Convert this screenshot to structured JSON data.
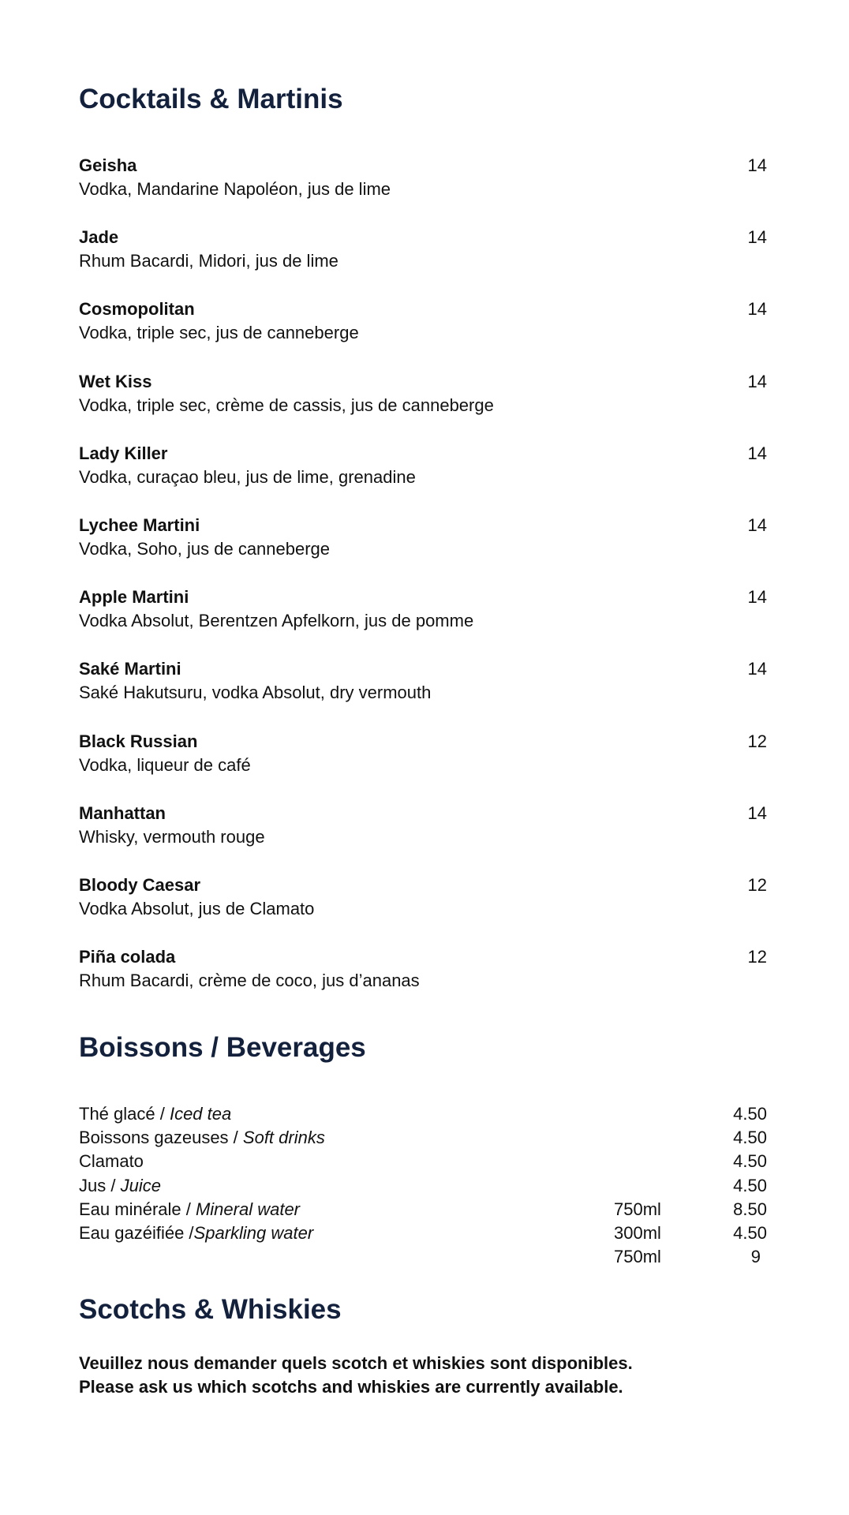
{
  "sections": {
    "cocktails": {
      "title": "Cocktails & Martinis",
      "items": [
        {
          "name": "Geisha",
          "description": "Vodka, Mandarine Napoléon, jus de lime",
          "price": "14"
        },
        {
          "name": "Jade",
          "description": "Rhum Bacardi, Midori, jus de lime",
          "price": "14"
        },
        {
          "name": "Cosmopolitan",
          "description": "Vodka, triple sec, jus de canneberge",
          "price": "14"
        },
        {
          "name": "Wet Kiss",
          "description": "Vodka, triple sec, crème de cassis, jus de canneberge",
          "price": "14"
        },
        {
          "name": "Lady Killer",
          "description": "Vodka, curaçao bleu, jus de lime, grenadine",
          "price": "14"
        },
        {
          "name": "Lychee Martini",
          "description": "Vodka, Soho, jus de canneberge",
          "price": "14"
        },
        {
          "name": "Apple Martini",
          "description": "Vodka Absolut, Berentzen Apfelkorn, jus de pomme",
          "price": "14"
        },
        {
          "name": "Saké Martini",
          "description": "Saké Hakutsuru, vodka Absolut, dry vermouth",
          "price": "14"
        },
        {
          "name": "Black Russian",
          "description": "Vodka, liqueur de café",
          "price": "12"
        },
        {
          "name": "Manhattan",
          "description": "Whisky, vermouth rouge",
          "price": "14"
        },
        {
          "name": "Bloody Caesar",
          "description": "Vodka Absolut, jus de Clamato",
          "price": "12"
        },
        {
          "name": "Piña colada",
          "description": "Rhum Bacardi, crème de coco, jus d’ananas",
          "price": "12"
        }
      ]
    },
    "beverages": {
      "title": "Boissons / Beverages",
      "items": [
        {
          "fr": "Thé glacé / ",
          "en": "Iced tea",
          "size": "",
          "price": "4.50"
        },
        {
          "fr": "Boissons gazeuses / ",
          "en": "Soft drinks",
          "size": "",
          "price": "4.50"
        },
        {
          "fr": "Clamato",
          "en": "",
          "size": "",
          "price": "4.50"
        },
        {
          "fr": "Jus / ",
          "en": "Juice",
          "size": "",
          "price": "4.50"
        },
        {
          "fr": "Eau minérale / ",
          "en": "Mineral water",
          "size": "750ml",
          "price": "8.50"
        },
        {
          "fr": "Eau gazéifiée /",
          "en": "Sparkling water",
          "size": "300ml",
          "price": "4.50"
        },
        {
          "fr": "",
          "en": "",
          "size": "750ml",
          "price": "9"
        }
      ]
    },
    "scotch": {
      "title": "Scotchs & Whiskies",
      "note_fr": "Veuillez nous demander quels scotch et whiskies sont disponibles.",
      "note_en": "Please ask us which scotchs and whiskies are currently available."
    }
  },
  "colors": {
    "heading": "#13213c",
    "text": "#111111"
  }
}
